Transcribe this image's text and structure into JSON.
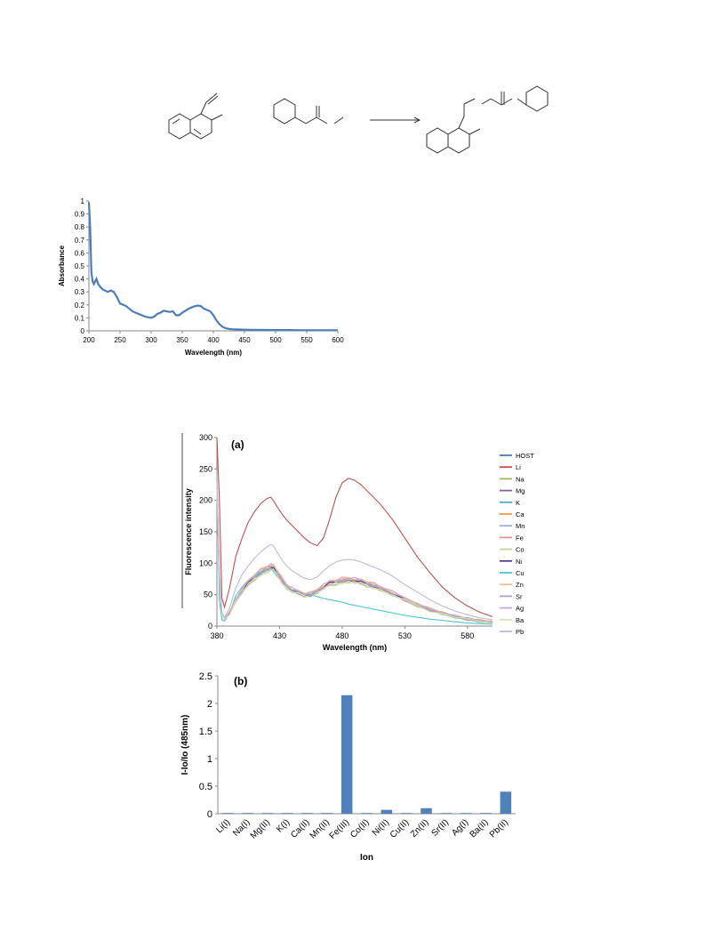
{
  "scheme": {
    "description_visible": false
  },
  "chart_data": [
    {
      "type": "line",
      "xlabel": "Wavelength (nm)",
      "ylabel": "Absorbance",
      "xlim": [
        200,
        600
      ],
      "ylim": [
        0,
        1
      ],
      "xticks": [
        "200",
        "250",
        "300",
        "350",
        "400",
        "450",
        "500",
        "550",
        "600"
      ],
      "yticks": [
        "0",
        "0.1",
        "0.2",
        "0.3",
        "0.4",
        "0.5",
        "0.6",
        "0.7",
        "0.8",
        "0.9",
        "1"
      ],
      "color": "#4a7ebb",
      "series": [
        {
          "x": [
            200,
            202,
            204,
            206,
            208,
            210,
            212,
            215,
            218,
            222,
            226,
            230,
            235,
            240,
            245,
            250,
            255,
            260,
            265,
            270,
            275,
            280,
            285,
            290,
            295,
            300,
            305,
            310,
            315,
            320,
            325,
            330,
            335,
            340,
            345,
            350,
            355,
            360,
            365,
            370,
            375,
            380,
            385,
            390,
            395,
            400,
            405,
            410,
            415,
            420,
            425,
            430,
            440,
            450,
            460,
            480,
            500,
            520,
            540,
            560,
            580,
            600
          ],
          "y": [
            0.99,
            0.8,
            0.45,
            0.38,
            0.36,
            0.38,
            0.4,
            0.36,
            0.34,
            0.32,
            0.31,
            0.3,
            0.31,
            0.3,
            0.26,
            0.21,
            0.2,
            0.19,
            0.17,
            0.15,
            0.14,
            0.13,
            0.12,
            0.11,
            0.105,
            0.1,
            0.11,
            0.13,
            0.14,
            0.155,
            0.15,
            0.145,
            0.15,
            0.12,
            0.12,
            0.14,
            0.155,
            0.17,
            0.18,
            0.19,
            0.195,
            0.19,
            0.17,
            0.16,
            0.15,
            0.12,
            0.08,
            0.05,
            0.03,
            0.02,
            0.015,
            0.012,
            0.01,
            0.009,
            0.008,
            0.007,
            0.006,
            0.006,
            0.005,
            0.005,
            0.005,
            0.005
          ]
        }
      ]
    },
    {
      "type": "line",
      "panel_label": "(a)",
      "xlabel": "Wavelength (nm)",
      "ylabel": "Fluorescence intensity",
      "xlim": [
        380,
        600
      ],
      "ylim": [
        0,
        300
      ],
      "xticks": [
        "380",
        "430",
        "480",
        "530",
        "580"
      ],
      "yticks": [
        "0",
        "50",
        "100",
        "150",
        "200",
        "250",
        "300"
      ],
      "x": [
        380,
        382,
        384,
        386,
        390,
        395,
        400,
        405,
        410,
        415,
        420,
        423,
        425,
        428,
        432,
        436,
        440,
        445,
        450,
        455,
        460,
        465,
        470,
        475,
        480,
        485,
        490,
        495,
        500,
        505,
        510,
        520,
        530,
        540,
        550,
        560,
        570,
        580,
        590,
        600
      ],
      "series": [
        {
          "name": "HOST",
          "color": "#4a7ebb",
          "profile": "base",
          "scale": 1.0
        },
        {
          "name": "Li",
          "color": "#c0504d",
          "profile": "li"
        },
        {
          "name": "Na",
          "color": "#9bbb59",
          "profile": "base",
          "scale": 1.02
        },
        {
          "name": "Mg",
          "color": "#8064a2",
          "profile": "base",
          "scale": 0.98
        },
        {
          "name": "K",
          "color": "#4bacc6",
          "profile": "base",
          "scale": 1.04
        },
        {
          "name": "Ca",
          "color": "#f79646",
          "profile": "base",
          "scale": 1.01
        },
        {
          "name": "Mn",
          "color": "#95b3d7",
          "profile": "base",
          "scale": 0.97
        },
        {
          "name": "Fe",
          "color": "#d99694",
          "profile": "base",
          "scale": 1.03
        },
        {
          "name": "Co",
          "color": "#c3d69b",
          "profile": "base",
          "scale": 0.95
        },
        {
          "name": "Ni",
          "color": "#4f3a8c",
          "profile": "base",
          "scale": 1.0
        },
        {
          "name": "Cu",
          "color": "#4bc6d6",
          "profile": "cu"
        },
        {
          "name": "Zn",
          "color": "#fac08f",
          "profile": "base",
          "scale": 1.06
        },
        {
          "name": "Sr",
          "color": "#b3a2c7",
          "profile": "base",
          "scale": 0.99
        },
        {
          "name": "Ag",
          "color": "#c6a9d9",
          "profile": "base",
          "scale": 1.05
        },
        {
          "name": "Ba",
          "color": "#d7e4a8",
          "profile": "base",
          "scale": 0.96
        },
        {
          "name": "Pb",
          "color": "#c4b7d9",
          "profile": "pb"
        }
      ],
      "profiles": {
        "base": [
          220,
          80,
          18,
          12,
          20,
          40,
          55,
          68,
          78,
          85,
          90,
          93,
          92,
          85,
          72,
          62,
          57,
          53,
          50,
          50,
          55,
          62,
          68,
          70,
          72,
          73,
          72,
          70,
          67,
          64,
          60,
          52,
          42,
          34,
          26,
          20,
          15,
          11,
          8,
          6
        ],
        "li": [
          300,
          200,
          45,
          30,
          60,
          110,
          140,
          165,
          182,
          195,
          203,
          205,
          200,
          190,
          178,
          168,
          160,
          150,
          140,
          132,
          128,
          140,
          170,
          205,
          228,
          235,
          232,
          225,
          215,
          205,
          195,
          170,
          140,
          110,
          85,
          62,
          45,
          32,
          22,
          15
        ],
        "cu": [
          240,
          40,
          10,
          8,
          20,
          48,
          62,
          73,
          80,
          86,
          90,
          91,
          88,
          80,
          70,
          62,
          58,
          55,
          52,
          50,
          47,
          44,
          42,
          40,
          38,
          35,
          33,
          31,
          29,
          27,
          25,
          21,
          17,
          14,
          11,
          9,
          7,
          5,
          4,
          3
        ],
        "pb": [
          230,
          90,
          22,
          14,
          28,
          60,
          82,
          96,
          108,
          118,
          126,
          130,
          128,
          118,
          105,
          95,
          88,
          82,
          76,
          74,
          78,
          88,
          96,
          102,
          105,
          106,
          105,
          102,
          98,
          94,
          90,
          80,
          66,
          54,
          42,
          32,
          24,
          18,
          13,
          10
        ]
      }
    },
    {
      "type": "bar",
      "panel_label": "(b)",
      "xlabel": "Ion",
      "ylabel": "I-Io/Io (485nm)",
      "ylim": [
        0,
        2.5
      ],
      "yticks": [
        "0",
        "0.5",
        "1",
        "1.5",
        "2",
        "2.5"
      ],
      "categories": [
        "Li(I)",
        "Na(I)",
        "Mg(II)",
        "K(I)",
        "Ca(II)",
        "Mn(II)",
        "Fe(III)",
        "Co(II)",
        "Ni(II)",
        "Cu(II)",
        "Zn(II)",
        "Sr(II)",
        "Ag(I)",
        "Ba(II)",
        "Pb(II)"
      ],
      "values": [
        0.01,
        0.01,
        0.01,
        0.01,
        0.0,
        0.01,
        2.15,
        0.01,
        0.07,
        0.01,
        0.1,
        0.0,
        0.0,
        0.01,
        0.4
      ],
      "color": "#4f81bd"
    }
  ]
}
